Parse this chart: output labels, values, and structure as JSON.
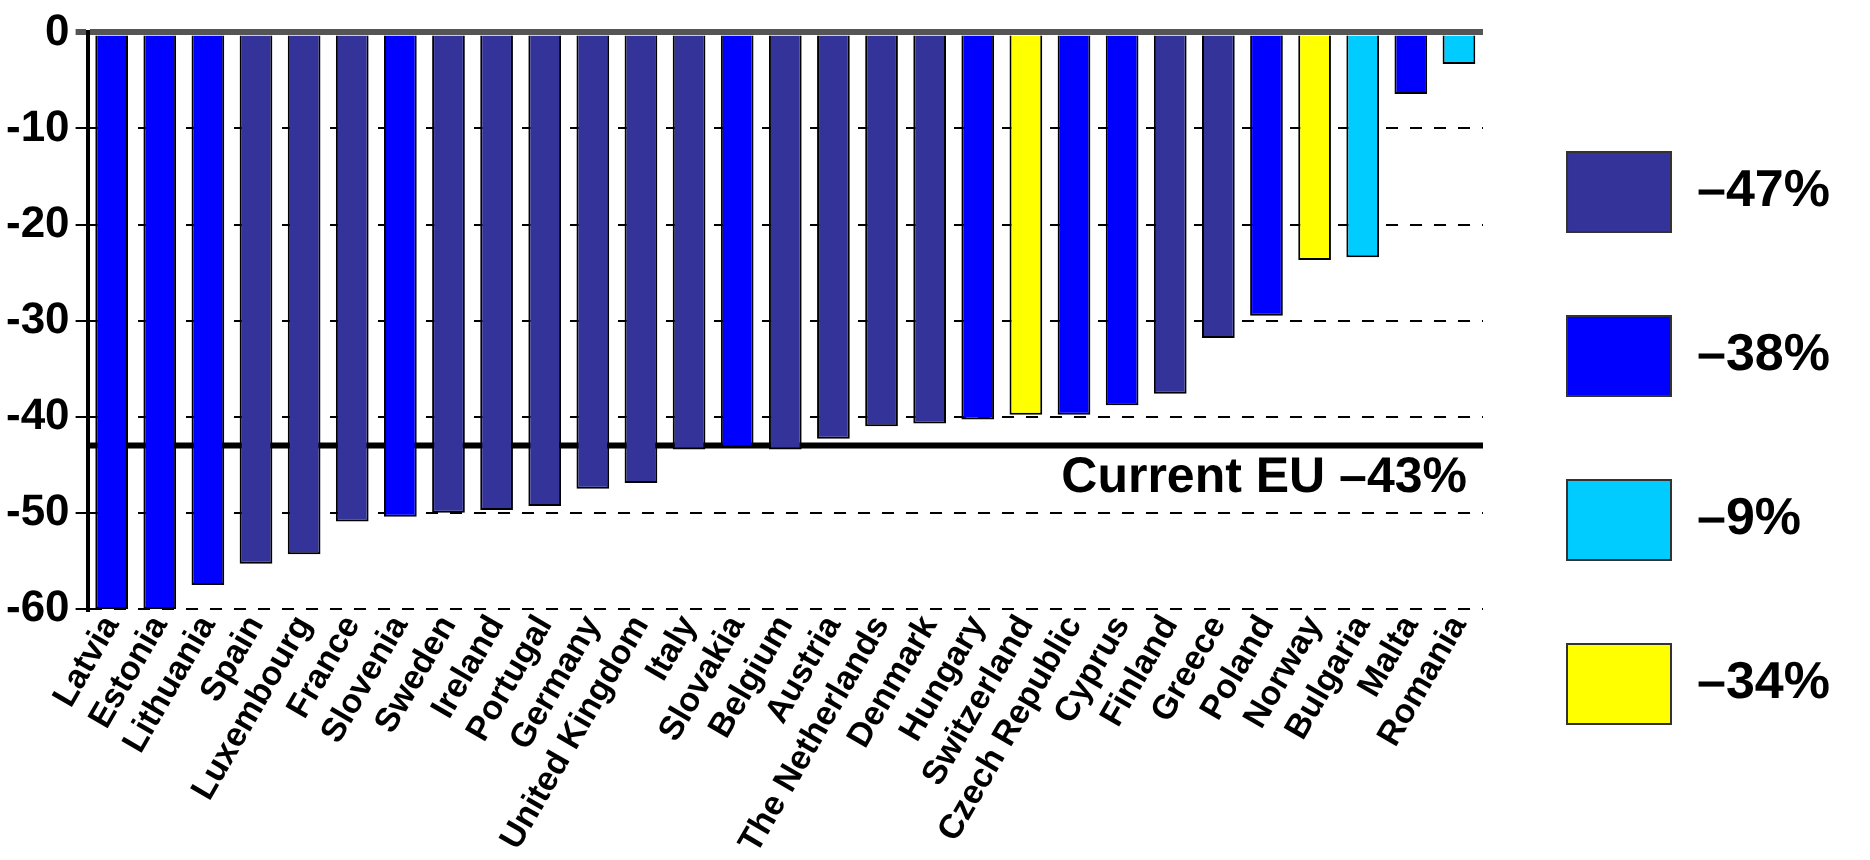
{
  "chart_data": {
    "type": "bar",
    "stacked": true,
    "categories": [
      "Latvia",
      "Estonia",
      "Lithuania",
      "Spain",
      "Luxembourg",
      "France",
      "Slovenia",
      "Sweden",
      "Ireland",
      "Portugal",
      "Germany",
      "United Kingdom",
      "Italy",
      "Slovakia",
      "Belgium",
      "Austria",
      "The Netherlands",
      "Denmark",
      "Hungary",
      "Switzerland",
      "Czech Republic",
      "Cyprus",
      "Finland",
      "Greece",
      "Poland",
      "Norway",
      "Bulgaria",
      "Malta",
      "Romania"
    ],
    "series": [
      {
        "name": "–47%",
        "color": "#333399",
        "values": [
          null,
          null,
          null,
          -55.3,
          -54.3,
          -50.9,
          null,
          -50.0,
          -49.7,
          -49.3,
          -47.5,
          -46.9,
          -43.4,
          null,
          -43.4,
          -42.3,
          -41.0,
          -40.7,
          null,
          null,
          null,
          null,
          -37.6,
          -31.8,
          null,
          null,
          null,
          null,
          null
        ]
      },
      {
        "name": "–38%",
        "color": "#0000ff",
        "values": [
          -60,
          -60,
          -57.5,
          null,
          null,
          null,
          -50.4,
          null,
          null,
          null,
          null,
          null,
          null,
          -43.2,
          null,
          null,
          null,
          null,
          -40.3,
          null,
          -39.8,
          -38.8,
          null,
          null,
          -29.5,
          null,
          null,
          -6.4,
          null
        ]
      },
      {
        "name": "–9%",
        "color": "#00ccff",
        "values": [
          null,
          null,
          null,
          null,
          null,
          null,
          null,
          null,
          null,
          null,
          null,
          null,
          null,
          null,
          null,
          null,
          null,
          null,
          null,
          null,
          null,
          null,
          null,
          null,
          null,
          null,
          -23.4,
          null,
          -3.3
        ]
      },
      {
        "name": "–34%",
        "color": "#ffff00",
        "values": [
          null,
          null,
          null,
          null,
          null,
          null,
          null,
          null,
          null,
          null,
          null,
          null,
          null,
          null,
          null,
          null,
          null,
          null,
          null,
          -39.8,
          null,
          null,
          null,
          null,
          null,
          -23.7,
          null,
          null,
          null
        ]
      }
    ],
    "ylim": [
      -60,
      0
    ],
    "yticks": [
      0,
      -10,
      -20,
      -30,
      -40,
      -50,
      -60
    ],
    "grid": "y",
    "legend": "right",
    "ref_lines": [
      {
        "axis": "y",
        "value": -43,
        "label": "Current EU –43%",
        "color": "#000000",
        "line_style": "solid"
      }
    ]
  }
}
